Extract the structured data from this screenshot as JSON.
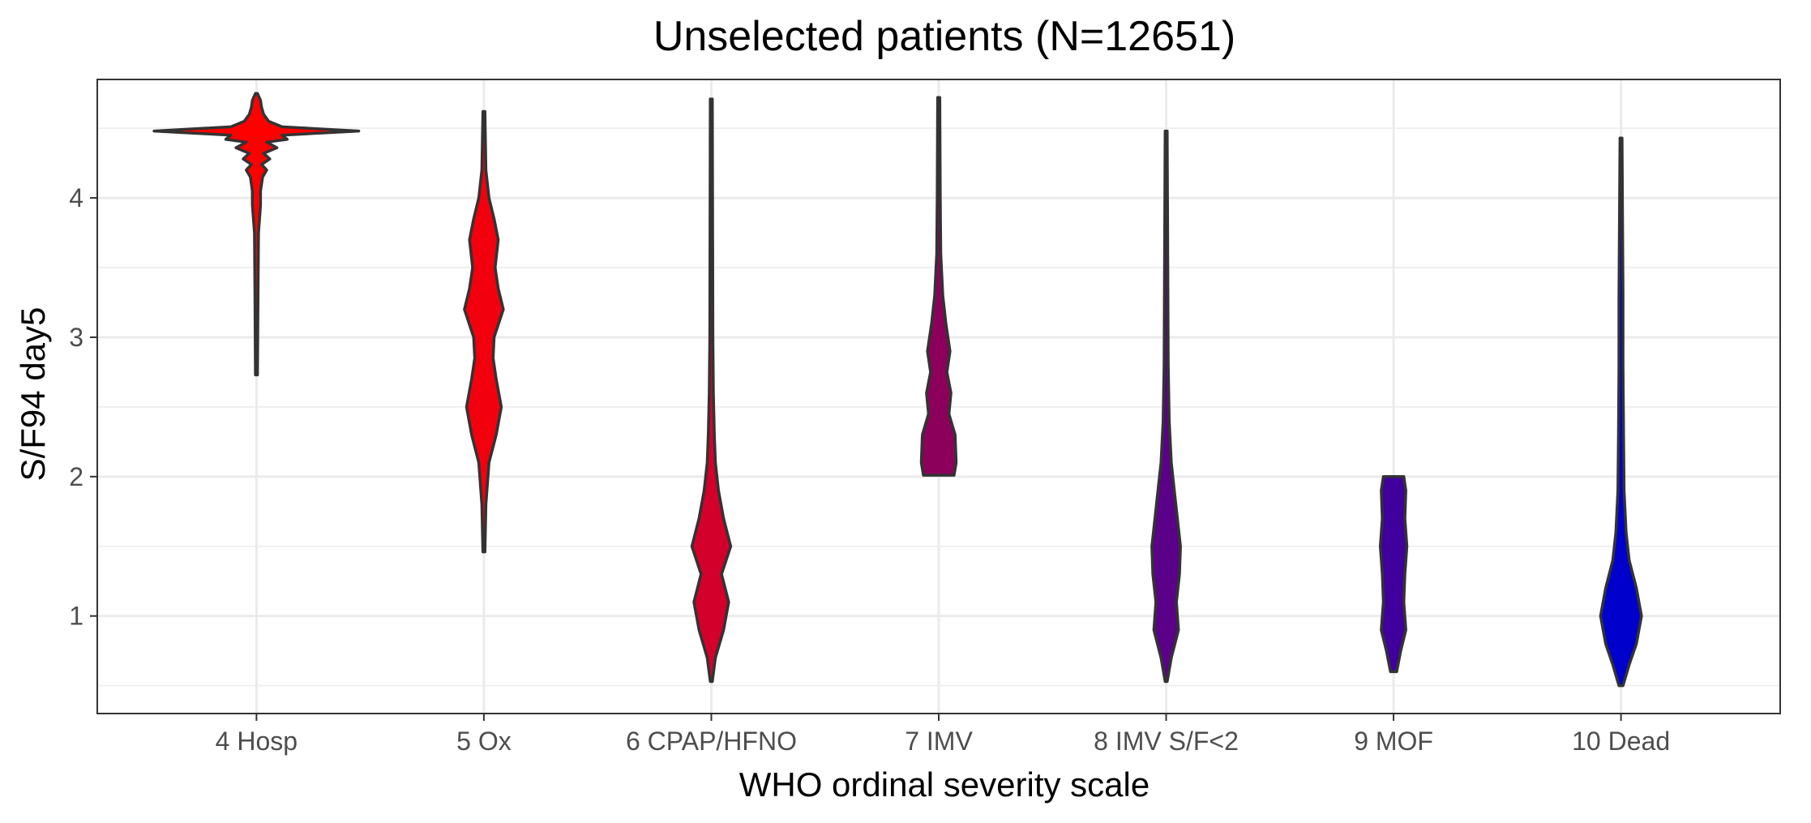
{
  "chart_data": {
    "type": "violin",
    "title": "Unselected patients (N=12651)",
    "xlabel": "WHO ordinal severity scale",
    "ylabel": "S/F94 day5",
    "categories": [
      "4 Hosp",
      "5 Ox",
      "6 CPAP/HFNO",
      "7 IMV",
      "8 IMV S/F<2",
      "9 MOF",
      "10 Dead"
    ],
    "ylim": [
      0.3,
      4.85
    ],
    "yticks": [
      1,
      2,
      3,
      4
    ],
    "grid": true,
    "legend": "none",
    "series": [
      {
        "category": "4 Hosp",
        "color": "#ff0000",
        "min": 2.73,
        "max": 4.75,
        "profile": [
          [
            2.73,
            0.01
          ],
          [
            3.3,
            0.015
          ],
          [
            3.75,
            0.02
          ],
          [
            3.85,
            0.03
          ],
          [
            3.95,
            0.04
          ],
          [
            4.05,
            0.04
          ],
          [
            4.15,
            0.06
          ],
          [
            4.2,
            0.1
          ],
          [
            4.24,
            0.05
          ],
          [
            4.28,
            0.13
          ],
          [
            4.32,
            0.07
          ],
          [
            4.36,
            0.2
          ],
          [
            4.4,
            0.1
          ],
          [
            4.42,
            0.3
          ],
          [
            4.45,
            0.25
          ],
          [
            4.48,
            1.0
          ],
          [
            4.51,
            0.25
          ],
          [
            4.55,
            0.12
          ],
          [
            4.6,
            0.07
          ],
          [
            4.65,
            0.05
          ],
          [
            4.7,
            0.04
          ],
          [
            4.75,
            0.01
          ]
        ]
      },
      {
        "category": "5 Ox",
        "color": "#f2000e",
        "min": 1.46,
        "max": 4.62,
        "profile": [
          [
            1.46,
            0.01
          ],
          [
            1.8,
            0.02
          ],
          [
            2.1,
            0.05
          ],
          [
            2.3,
            0.12
          ],
          [
            2.5,
            0.17
          ],
          [
            2.7,
            0.12
          ],
          [
            2.85,
            0.09
          ],
          [
            3.0,
            0.1
          ],
          [
            3.2,
            0.19
          ],
          [
            3.35,
            0.14
          ],
          [
            3.5,
            0.11
          ],
          [
            3.7,
            0.14
          ],
          [
            3.85,
            0.1
          ],
          [
            4.0,
            0.05
          ],
          [
            4.2,
            0.02
          ],
          [
            4.62,
            0.01
          ]
        ]
      },
      {
        "category": "6 CPAP/HFNO",
        "color": "#d3002b",
        "min": 0.53,
        "max": 4.71,
        "profile": [
          [
            0.53,
            0.01
          ],
          [
            0.7,
            0.04
          ],
          [
            0.9,
            0.12
          ],
          [
            1.1,
            0.17
          ],
          [
            1.3,
            0.1
          ],
          [
            1.5,
            0.19
          ],
          [
            1.7,
            0.12
          ],
          [
            1.9,
            0.07
          ],
          [
            2.1,
            0.04
          ],
          [
            2.3,
            0.03
          ],
          [
            2.6,
            0.02
          ],
          [
            3.0,
            0.015
          ],
          [
            4.71,
            0.01
          ]
        ]
      },
      {
        "category": "7 IMV",
        "color": "#8c005c",
        "min": 2.01,
        "max": 4.72,
        "profile": [
          [
            2.01,
            0.15
          ],
          [
            2.1,
            0.17
          ],
          [
            2.3,
            0.16
          ],
          [
            2.45,
            0.1
          ],
          [
            2.6,
            0.12
          ],
          [
            2.75,
            0.08
          ],
          [
            2.9,
            0.11
          ],
          [
            3.1,
            0.07
          ],
          [
            3.3,
            0.04
          ],
          [
            3.6,
            0.02
          ],
          [
            4.0,
            0.015
          ],
          [
            4.72,
            0.01
          ]
        ]
      },
      {
        "category": "8 IMV S/F<2",
        "color": "#5b0088",
        "min": 0.53,
        "max": 4.48,
        "profile": [
          [
            0.53,
            0.01
          ],
          [
            0.7,
            0.05
          ],
          [
            0.9,
            0.12
          ],
          [
            1.1,
            0.1
          ],
          [
            1.3,
            0.13
          ],
          [
            1.5,
            0.14
          ],
          [
            1.7,
            0.11
          ],
          [
            1.9,
            0.08
          ],
          [
            2.1,
            0.05
          ],
          [
            2.4,
            0.03
          ],
          [
            2.8,
            0.02
          ],
          [
            4.48,
            0.01
          ]
        ]
      },
      {
        "category": "9 MOF",
        "color": "#40009e",
        "min": 0.6,
        "max": 2.0,
        "profile": [
          [
            0.6,
            0.03
          ],
          [
            0.75,
            0.07
          ],
          [
            0.9,
            0.12
          ],
          [
            1.1,
            0.1
          ],
          [
            1.3,
            0.11
          ],
          [
            1.5,
            0.13
          ],
          [
            1.7,
            0.11
          ],
          [
            1.9,
            0.12
          ],
          [
            2.0,
            0.1
          ]
        ]
      },
      {
        "category": "10 Dead",
        "color": "#0000cc",
        "min": 0.5,
        "max": 4.43,
        "profile": [
          [
            0.5,
            0.02
          ],
          [
            0.65,
            0.08
          ],
          [
            0.8,
            0.15
          ],
          [
            1.0,
            0.2
          ],
          [
            1.2,
            0.15
          ],
          [
            1.4,
            0.08
          ],
          [
            1.6,
            0.05
          ],
          [
            1.9,
            0.03
          ],
          [
            2.3,
            0.025
          ],
          [
            2.8,
            0.02
          ],
          [
            3.3,
            0.02
          ],
          [
            4.43,
            0.01
          ]
        ]
      }
    ]
  }
}
